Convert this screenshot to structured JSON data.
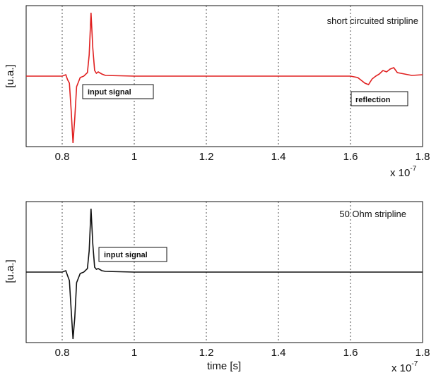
{
  "chart_data": [
    {
      "type": "line",
      "title": "short circuited stripline",
      "xlabel": "",
      "ylabel": "[u.a.]",
      "xlim": [
        7e-08,
        1.8e-07
      ],
      "ylim": [
        -1,
        1
      ],
      "x_ticks": [
        8e-08,
        1e-07,
        1.2e-07,
        1.4e-07,
        1.6e-07,
        1.8e-07
      ],
      "x_tick_labels": [
        "0.8",
        "1",
        "1.2",
        "1.4",
        "1.6",
        "1.8"
      ],
      "x_scale_label": "x 10",
      "x_scale_exponent": "-7",
      "grid": "vertical dashed",
      "color": "#e02020",
      "annotations": [
        {
          "text": "input signal",
          "x": 8.3e-08,
          "y": -0.25
        },
        {
          "text": "reflection",
          "x": 1.65e-07,
          "y": -0.35
        }
      ],
      "series": [
        {
          "x": [
            7e-08,
            8e-08,
            8.1e-08,
            8.15e-08,
            8.2e-08,
            8.25e-08,
            8.3e-08,
            8.35e-08,
            8.4e-08,
            8.5e-08,
            8.6e-08,
            8.7e-08,
            8.75e-08,
            8.8e-08,
            8.85e-08,
            8.9e-08,
            8.95e-08,
            9e-08,
            9.1e-08,
            9.2e-08,
            1e-07,
            1.2e-07,
            1.4e-07,
            1.6e-07,
            1.62e-07,
            1.64e-07,
            1.65e-07,
            1.66e-07,
            1.67e-07,
            1.68e-07,
            1.69e-07,
            1.7e-07,
            1.71e-07,
            1.72e-07,
            1.73e-07,
            1.75e-07,
            1.77e-07,
            1.8e-07
          ],
          "y": [
            0.0,
            0.0,
            0.02,
            -0.05,
            -0.1,
            -0.5,
            -0.95,
            -0.6,
            -0.15,
            -0.02,
            0.0,
            0.05,
            0.3,
            0.9,
            0.4,
            0.08,
            0.04,
            0.06,
            0.03,
            0.01,
            0.0,
            0.0,
            0.0,
            0.0,
            -0.02,
            -0.1,
            -0.12,
            -0.04,
            0.0,
            0.03,
            0.08,
            0.06,
            0.1,
            0.12,
            0.05,
            0.03,
            0.01,
            0.02
          ]
        }
      ]
    },
    {
      "type": "line",
      "title": "50 Ohm stripline",
      "xlabel": "time [s]",
      "ylabel": "[u.a.]",
      "xlim": [
        7e-08,
        1.8e-07
      ],
      "ylim": [
        -1,
        1
      ],
      "x_ticks": [
        8e-08,
        1e-07,
        1.2e-07,
        1.4e-07,
        1.6e-07,
        1.8e-07
      ],
      "x_tick_labels": [
        "0.8",
        "1",
        "1.2",
        "1.4",
        "1.6",
        "1.8"
      ],
      "x_scale_label": "x 10",
      "x_scale_exponent": "-7",
      "grid": "vertical dashed",
      "color": "#111111",
      "annotations": [
        {
          "text": "input signal",
          "x": 9e-08,
          "y": 0.25
        }
      ],
      "series": [
        {
          "x": [
            7e-08,
            8e-08,
            8.1e-08,
            8.15e-08,
            8.2e-08,
            8.25e-08,
            8.3e-08,
            8.35e-08,
            8.4e-08,
            8.5e-08,
            8.6e-08,
            8.7e-08,
            8.75e-08,
            8.8e-08,
            8.85e-08,
            8.9e-08,
            8.95e-08,
            9e-08,
            9.1e-08,
            9.2e-08,
            1e-07,
            1.2e-07,
            1.4e-07,
            1.6e-07,
            1.8e-07
          ],
          "y": [
            0.0,
            0.0,
            0.02,
            -0.05,
            -0.12,
            -0.55,
            -0.95,
            -0.65,
            -0.15,
            -0.02,
            0.0,
            0.05,
            0.3,
            0.9,
            0.4,
            0.07,
            0.04,
            0.05,
            0.02,
            0.01,
            0.0,
            0.0,
            0.0,
            0.0,
            0.0
          ]
        }
      ]
    }
  ]
}
